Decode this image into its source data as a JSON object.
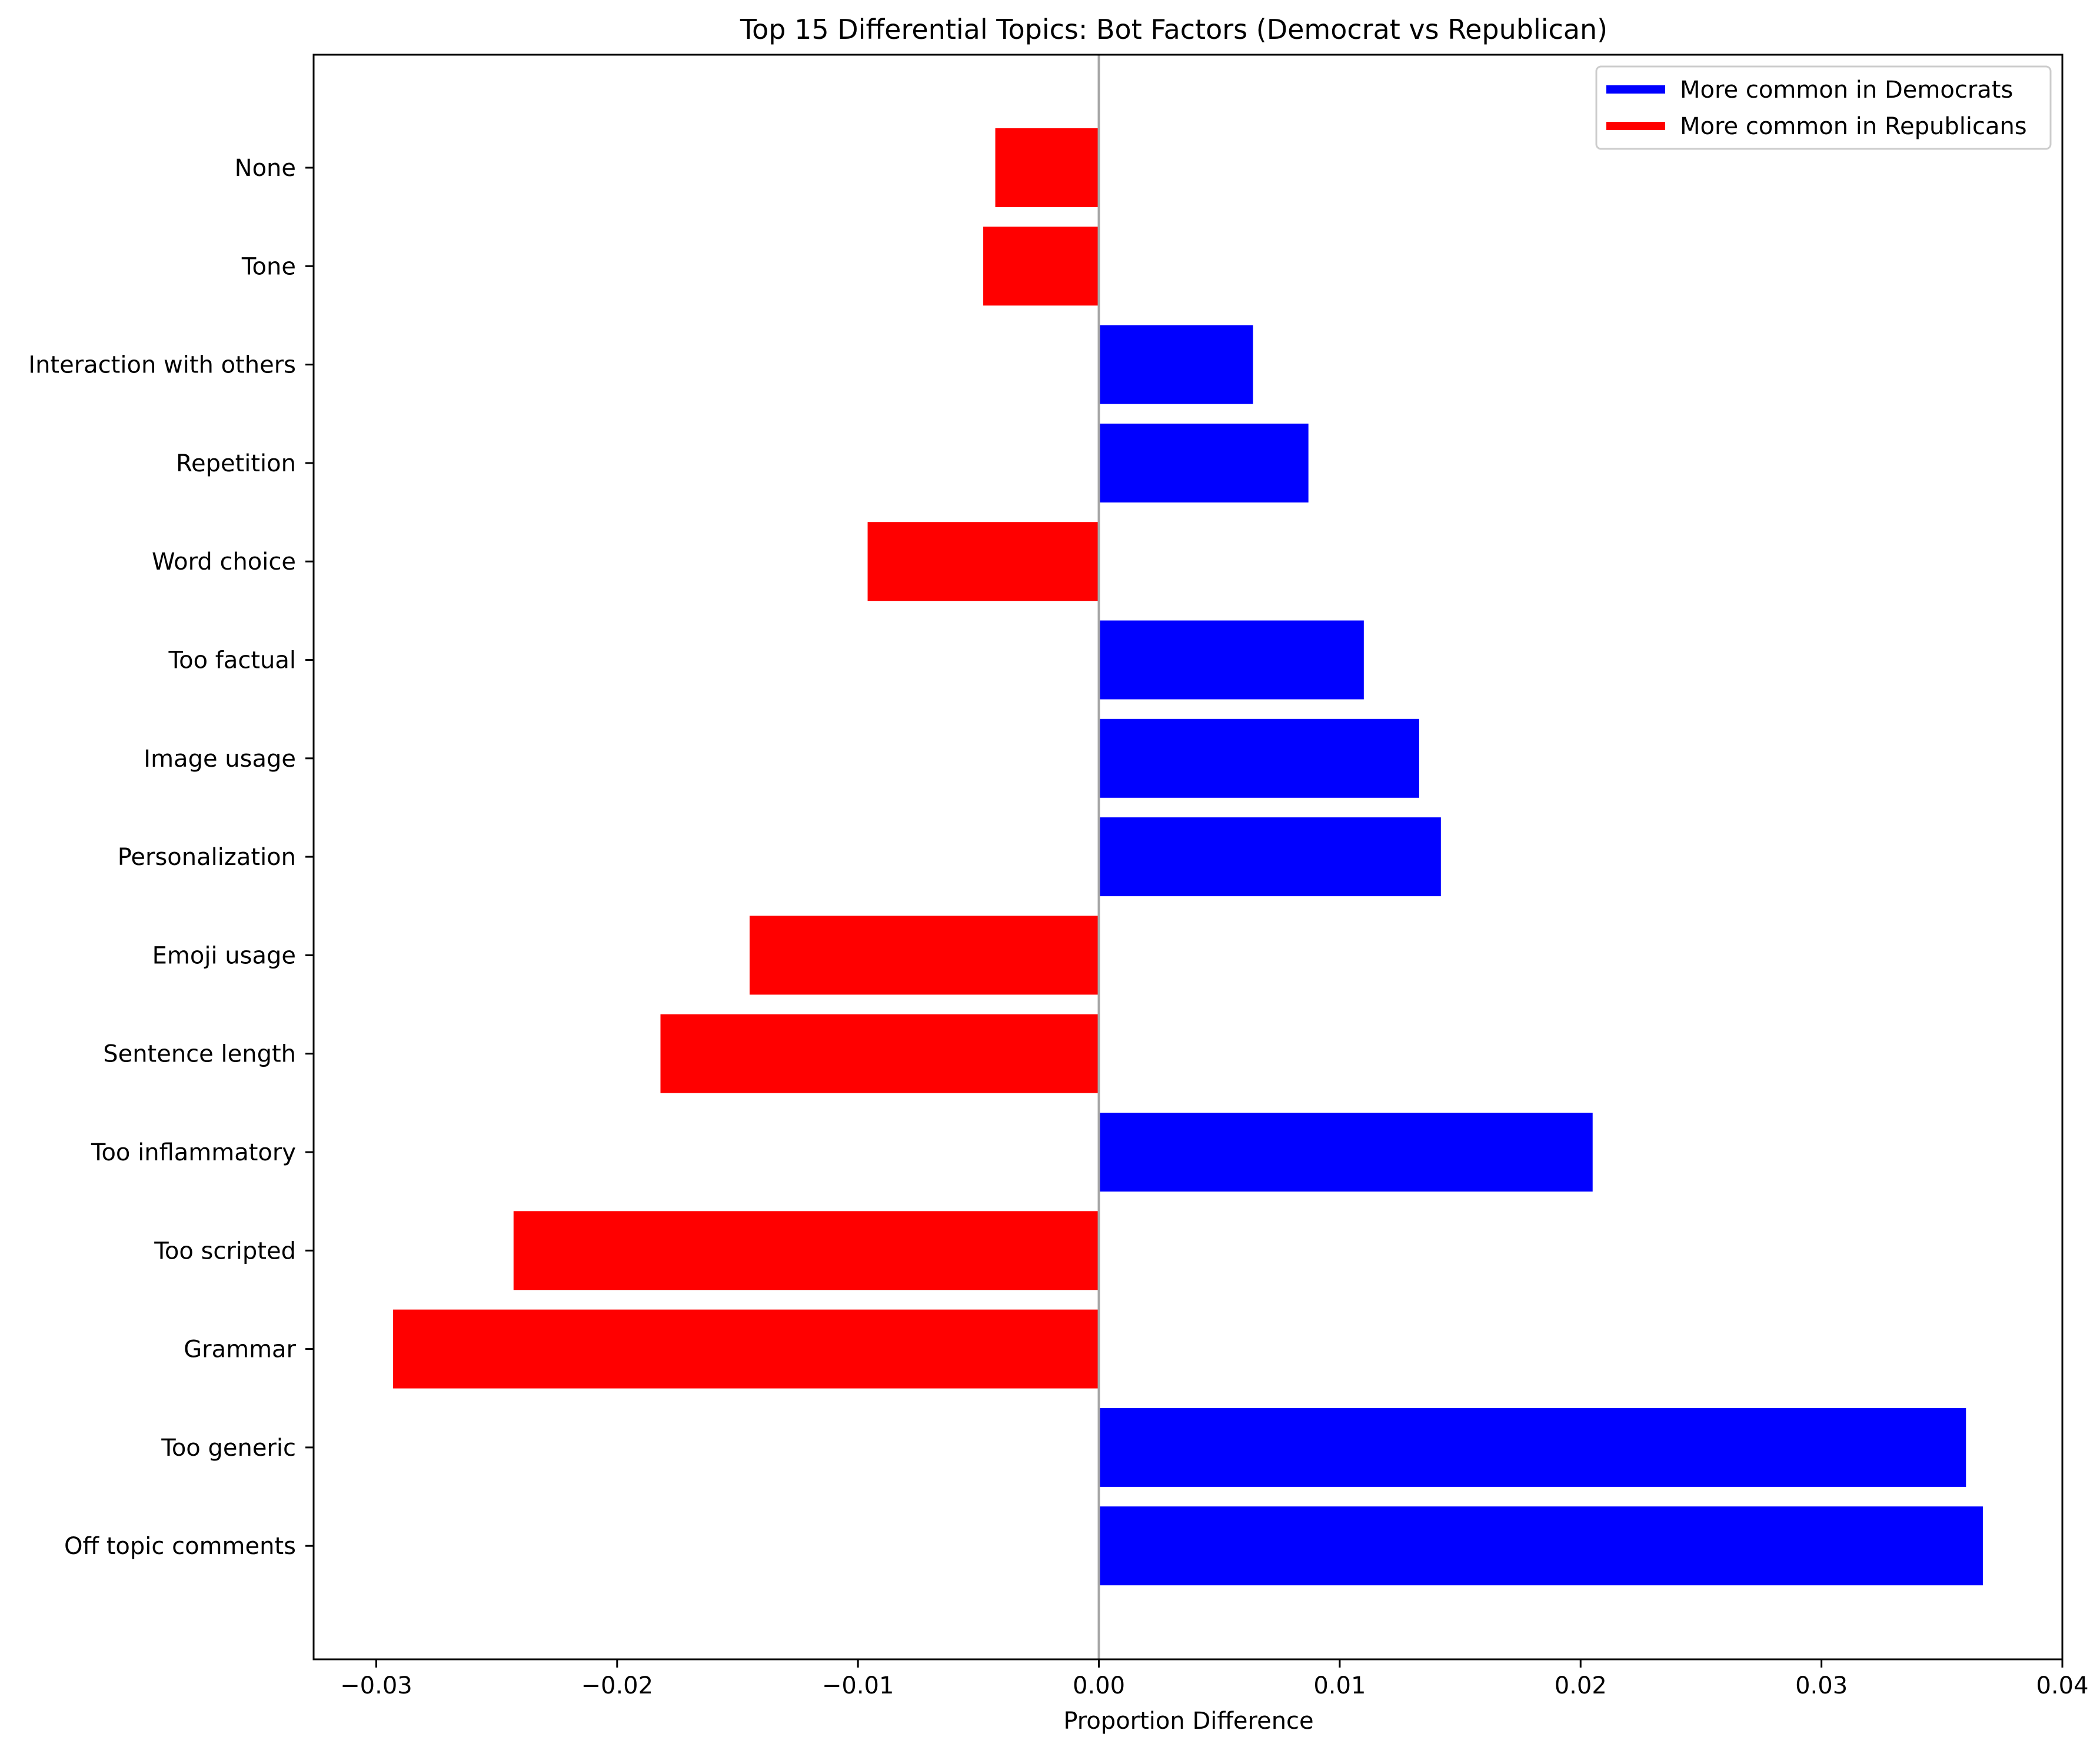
{
  "chart_data": {
    "type": "bar",
    "orientation": "horizontal",
    "title": "Top 15 Differential Topics: Bot Factors (Democrat vs Republican)",
    "xlabel": "Proportion Difference",
    "ylabel": "",
    "xlim": [
      -0.0326,
      0.04
    ],
    "xticks": [
      "−0.03",
      "−0.02",
      "−0.01",
      "0.00",
      "0.01",
      "0.02",
      "0.03",
      "0.04"
    ],
    "xtick_values": [
      -0.03,
      -0.02,
      -0.01,
      0.0,
      0.01,
      0.02,
      0.03,
      0.04
    ],
    "categories": [
      "None",
      "Tone",
      "Interaction with others",
      "Repetition",
      "Word choice",
      "Too factual",
      "Image usage",
      "Personalization",
      "Emoji usage",
      "Sentence length",
      "Too inflammatory",
      "Too scripted",
      "Grammar",
      "Too generic",
      "Off topic comments"
    ],
    "values": [
      -0.0043,
      -0.0048,
      0.0064,
      0.0087,
      -0.0096,
      0.011,
      0.0133,
      0.0142,
      -0.0145,
      -0.0182,
      0.0205,
      -0.0243,
      -0.0293,
      0.036,
      0.0367
    ],
    "colors": {
      "positive": "#0000ff",
      "negative": "#ff0000",
      "zero_line": "#a6a6a6",
      "axis": "#000000"
    },
    "legend": {
      "position": "top-right",
      "entries": [
        {
          "label": "More common in Democrats",
          "color": "#0000ff"
        },
        {
          "label": "More common in Republicans",
          "color": "#ff0000"
        }
      ]
    },
    "grid": false
  }
}
